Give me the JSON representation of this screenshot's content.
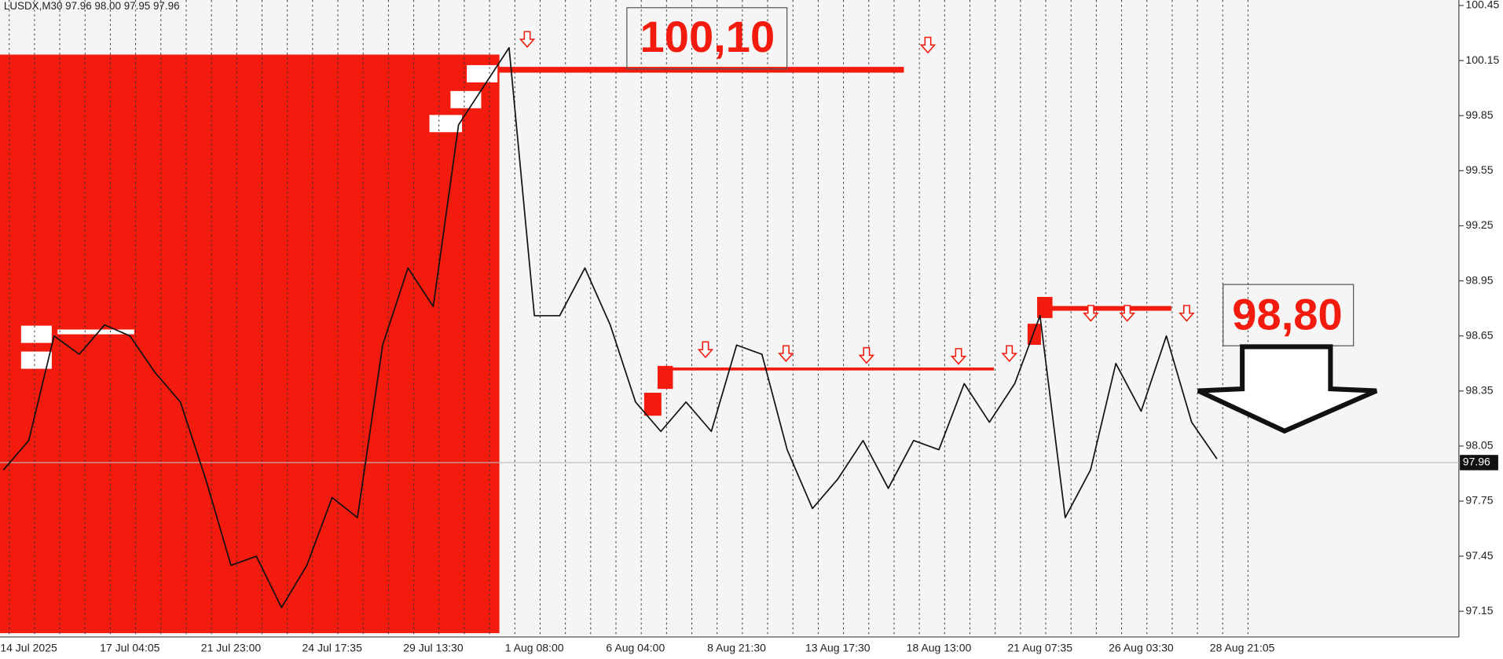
{
  "chart_data": {
    "type": "line",
    "title": "LUSDX,M30 97.96 98.00 97.95 97.96",
    "categories": [
      null,
      "14 Jul 2025",
      null,
      null,
      null,
      "17 Jul 04:05",
      null,
      null,
      null,
      "21 Jul 23:00",
      null,
      null,
      null,
      "24 Jul 17:35",
      null,
      null,
      null,
      "29 Jul 13:30",
      null,
      null,
      null,
      "1 Aug 08:00",
      null,
      null,
      null,
      "6 Aug 04:00",
      null,
      null,
      null,
      "8 Aug 21:30",
      null,
      null,
      null,
      "13 Aug 17:30",
      null,
      null,
      null,
      "18 Aug 13:00",
      null,
      null,
      null,
      "21 Aug 07:35",
      null,
      null,
      null,
      "26 Aug 03:30",
      null,
      null,
      null,
      "28 Aug 21:05"
    ],
    "values": [
      97.92,
      98.08,
      98.65,
      98.55,
      98.71,
      98.65,
      98.45,
      98.29,
      97.87,
      97.4,
      97.45,
      97.17,
      97.4,
      97.77,
      97.66,
      98.6,
      99.02,
      98.81,
      99.8,
      100.01,
      100.22,
      98.76,
      98.76,
      99.02,
      98.71,
      98.29,
      98.13,
      98.29,
      98.13,
      98.6,
      98.55,
      98.03,
      97.71,
      97.87,
      98.08,
      97.82,
      98.08,
      98.03,
      98.39,
      98.18,
      98.39,
      98.76,
      97.66,
      97.92,
      98.5,
      98.24,
      98.65,
      98.18,
      97.98,
      null
    ],
    "color": "#111111",
    "ylim": [
      97.01,
      100.48
    ],
    "yticks": [
      97.15,
      97.45,
      97.75,
      98.05,
      98.35,
      98.65,
      98.95,
      99.25,
      99.55,
      99.85,
      100.15,
      100.45
    ],
    "last_price": 97.96,
    "levels": [
      {
        "value": 100.1,
        "label": "100,10"
      },
      {
        "value": 98.8,
        "label": "98,80"
      },
      98.47
    ],
    "level_color": "#f21b0e",
    "grid": true
  }
}
